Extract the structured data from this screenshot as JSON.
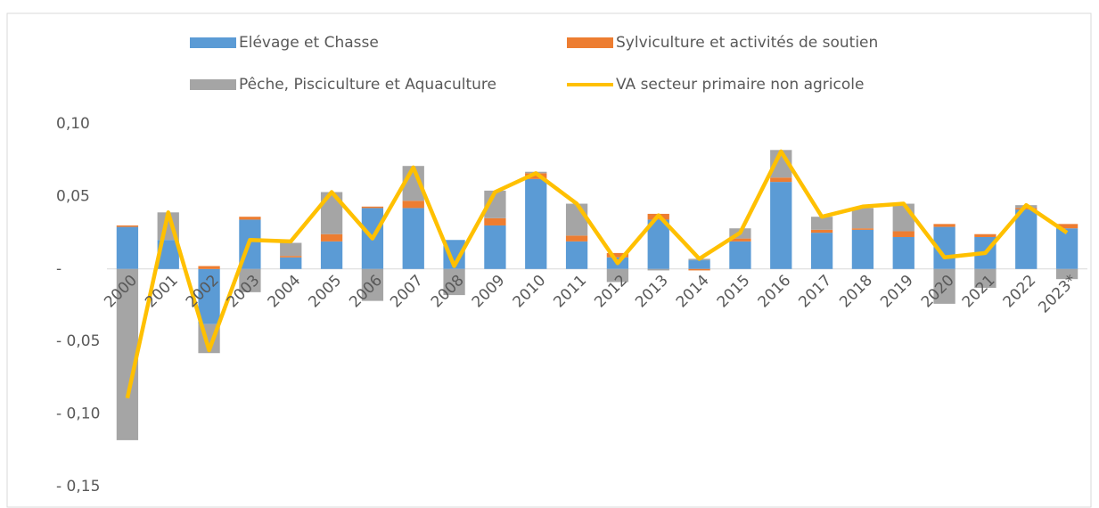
{
  "chart_data": {
    "type": "bar",
    "categories": [
      "2000",
      "2001",
      "2002",
      "2003",
      "2004",
      "2005",
      "2006",
      "2007",
      "2008",
      "2009",
      "2010",
      "2011",
      "2012",
      "2013",
      "2014",
      "2015",
      "2016",
      "2017",
      "2018",
      "2019",
      "2020",
      "2021",
      "2022",
      "2023*"
    ],
    "series": [
      {
        "name": "Elévage et Chasse",
        "color": "#5b9bd5",
        "values": [
          0.029,
          0.02,
          -0.038,
          0.034,
          0.008,
          0.019,
          0.042,
          0.042,
          0.02,
          0.03,
          0.062,
          0.019,
          0.008,
          0.034,
          0.006,
          0.019,
          0.06,
          0.025,
          0.027,
          0.022,
          0.029,
          0.022,
          0.041,
          0.028
        ]
      },
      {
        "name": "Sylviculture et activités de soutien",
        "color": "#ed7d31",
        "values": [
          0.001,
          0.0,
          0.002,
          0.002,
          0.001,
          0.005,
          0.001,
          0.005,
          0.0,
          0.005,
          0.004,
          0.004,
          0.003,
          0.004,
          -0.001,
          0.002,
          0.003,
          0.002,
          0.001,
          0.004,
          0.002,
          0.002,
          0.001,
          0.003
        ]
      },
      {
        "name": "Pêche, Pisciculture et Aquaculture",
        "color": "#a5a5a5",
        "values": [
          -0.118,
          0.019,
          -0.02,
          -0.016,
          0.009,
          0.029,
          -0.022,
          0.024,
          -0.018,
          0.019,
          0.001,
          0.022,
          -0.009,
          -0.001,
          0.001,
          0.007,
          0.019,
          0.009,
          0.014,
          0.019,
          -0.024,
          -0.013,
          0.002,
          -0.007
        ]
      },
      {
        "name": "VA secteur primaire non agricole",
        "color": "#ffc000",
        "type": "line",
        "values": [
          -0.089,
          0.039,
          -0.056,
          0.02,
          0.019,
          0.053,
          0.021,
          0.07,
          0.002,
          0.053,
          0.066,
          0.045,
          0.004,
          0.037,
          0.007,
          0.025,
          0.081,
          0.036,
          0.043,
          0.045,
          0.008,
          0.011,
          0.044,
          0.025
        ]
      }
    ],
    "ylim": [
      -0.15,
      0.1
    ],
    "yticks": [
      {
        "value": 0.1,
        "label": "0,10"
      },
      {
        "value": 0.05,
        "label": "0,05"
      },
      {
        "value": 0,
        "label": "-"
      },
      {
        "value": -0.05,
        "label": "- 0,05"
      },
      {
        "value": -0.1,
        "label": "- 0,10"
      },
      {
        "value": -0.15,
        "label": "- 0,15"
      }
    ],
    "legend": "top"
  }
}
